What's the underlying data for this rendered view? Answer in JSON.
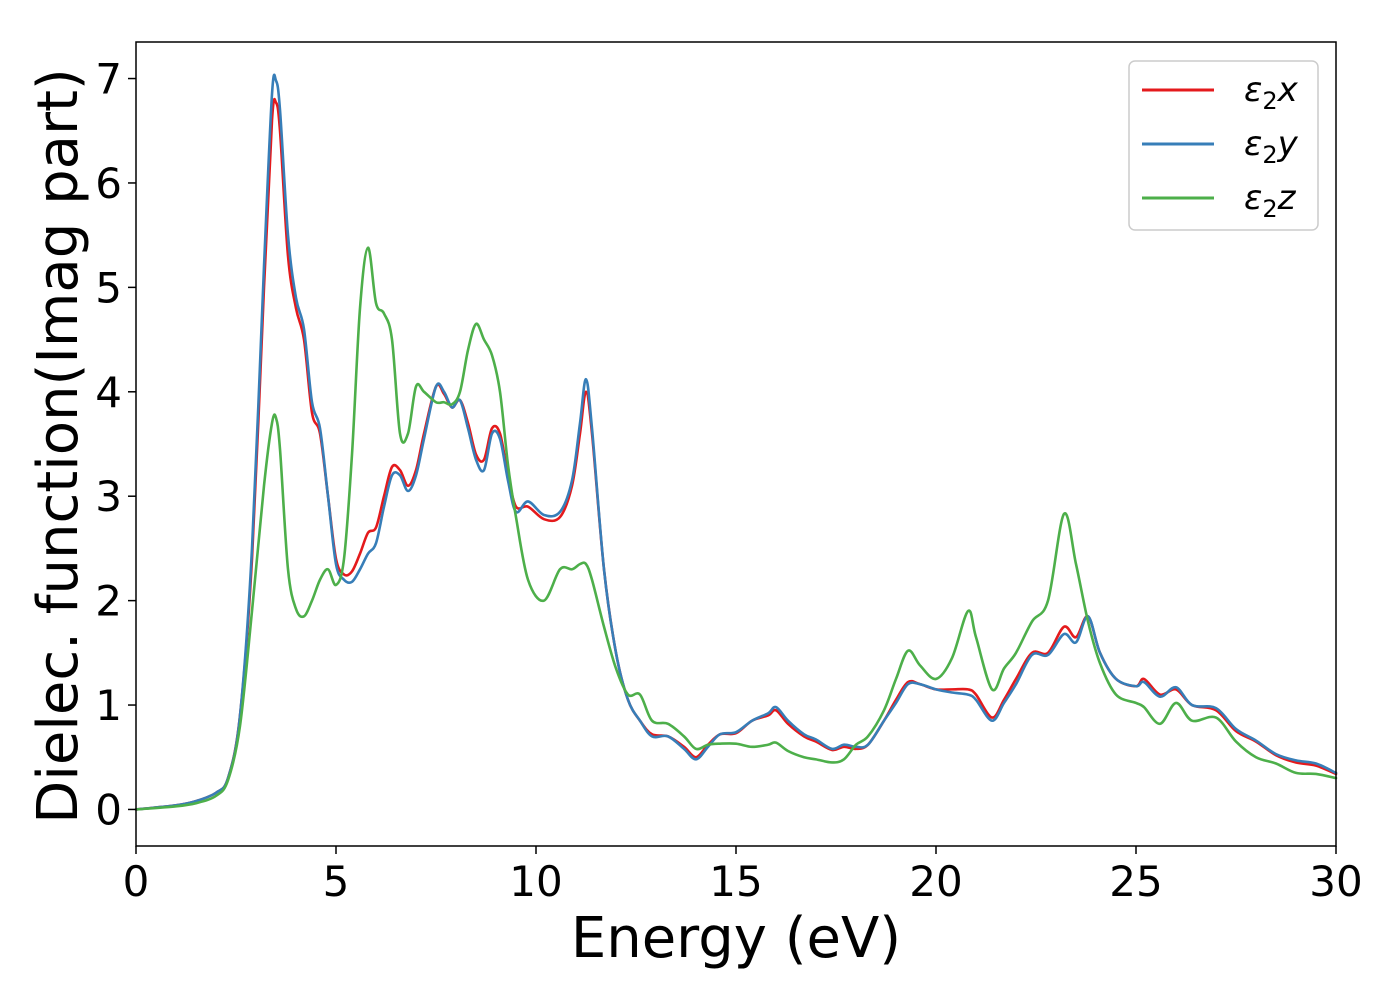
{
  "chart_data": {
    "type": "line",
    "title": "",
    "xlabel": "Energy (eV)",
    "ylabel": "Dielec. function(Imag part)",
    "xlim": [
      0,
      30
    ],
    "ylim": [
      -0.35,
      7.35
    ],
    "xticks": [
      "0",
      "5",
      "10",
      "15",
      "20",
      "25",
      "30"
    ],
    "yticks": [
      "0",
      "1",
      "2",
      "3",
      "4",
      "5",
      "6",
      "7"
    ],
    "grid": false,
    "legend_position": "top-right",
    "series": [
      {
        "name": "ε2x",
        "legend_main": "ε",
        "legend_sub": "2",
        "legend_tail": "x",
        "color": "#e41a1c",
        "points": [
          [
            0,
            0.0
          ],
          [
            1.0,
            0.04
          ],
          [
            1.5,
            0.08
          ],
          [
            2.0,
            0.16
          ],
          [
            2.3,
            0.3
          ],
          [
            2.6,
            0.9
          ],
          [
            2.9,
            2.4
          ],
          [
            3.2,
            5.0
          ],
          [
            3.4,
            6.6
          ],
          [
            3.5,
            6.77
          ],
          [
            3.6,
            6.5
          ],
          [
            3.8,
            5.3
          ],
          [
            4.0,
            4.8
          ],
          [
            4.2,
            4.5
          ],
          [
            4.4,
            3.8
          ],
          [
            4.6,
            3.6
          ],
          [
            4.8,
            3.0
          ],
          [
            5.0,
            2.4
          ],
          [
            5.2,
            2.25
          ],
          [
            5.4,
            2.28
          ],
          [
            5.6,
            2.45
          ],
          [
            5.8,
            2.65
          ],
          [
            6.0,
            2.7
          ],
          [
            6.2,
            3.0
          ],
          [
            6.4,
            3.28
          ],
          [
            6.6,
            3.25
          ],
          [
            6.8,
            3.1
          ],
          [
            7.0,
            3.25
          ],
          [
            7.2,
            3.6
          ],
          [
            7.5,
            4.05
          ],
          [
            7.7,
            3.98
          ],
          [
            7.9,
            3.85
          ],
          [
            8.1,
            3.92
          ],
          [
            8.3,
            3.7
          ],
          [
            8.5,
            3.4
          ],
          [
            8.7,
            3.35
          ],
          [
            8.9,
            3.65
          ],
          [
            9.1,
            3.6
          ],
          [
            9.3,
            3.2
          ],
          [
            9.5,
            2.9
          ],
          [
            9.8,
            2.9
          ],
          [
            10.2,
            2.78
          ],
          [
            10.6,
            2.8
          ],
          [
            10.9,
            3.1
          ],
          [
            11.1,
            3.6
          ],
          [
            11.25,
            4.0
          ],
          [
            11.4,
            3.6
          ],
          [
            11.7,
            2.3
          ],
          [
            12.0,
            1.5
          ],
          [
            12.3,
            1.05
          ],
          [
            12.6,
            0.85
          ],
          [
            12.9,
            0.72
          ],
          [
            13.3,
            0.7
          ],
          [
            13.7,
            0.6
          ],
          [
            14.0,
            0.5
          ],
          [
            14.3,
            0.62
          ],
          [
            14.6,
            0.72
          ],
          [
            15.0,
            0.73
          ],
          [
            15.4,
            0.85
          ],
          [
            15.8,
            0.9
          ],
          [
            16.0,
            0.95
          ],
          [
            16.3,
            0.82
          ],
          [
            16.7,
            0.7
          ],
          [
            17.0,
            0.65
          ],
          [
            17.4,
            0.57
          ],
          [
            17.7,
            0.6
          ],
          [
            18.0,
            0.58
          ],
          [
            18.3,
            0.62
          ],
          [
            18.7,
            0.85
          ],
          [
            19.0,
            1.05
          ],
          [
            19.3,
            1.22
          ],
          [
            19.6,
            1.2
          ],
          [
            20.0,
            1.15
          ],
          [
            20.4,
            1.15
          ],
          [
            20.8,
            1.15
          ],
          [
            21.0,
            1.1
          ],
          [
            21.4,
            0.88
          ],
          [
            21.7,
            1.05
          ],
          [
            22.0,
            1.25
          ],
          [
            22.4,
            1.5
          ],
          [
            22.8,
            1.5
          ],
          [
            23.2,
            1.75
          ],
          [
            23.5,
            1.65
          ],
          [
            23.8,
            1.85
          ],
          [
            24.1,
            1.5
          ],
          [
            24.5,
            1.25
          ],
          [
            25.0,
            1.18
          ],
          [
            25.2,
            1.25
          ],
          [
            25.6,
            1.1
          ],
          [
            26.0,
            1.15
          ],
          [
            26.4,
            1.0
          ],
          [
            27.0,
            0.95
          ],
          [
            27.5,
            0.75
          ],
          [
            28.0,
            0.65
          ],
          [
            28.5,
            0.52
          ],
          [
            29.0,
            0.45
          ],
          [
            29.5,
            0.42
          ],
          [
            30.0,
            0.34
          ]
        ]
      },
      {
        "name": "ε2y",
        "legend_main": "ε",
        "legend_sub": "2",
        "legend_tail": "y",
        "color": "#377eb8",
        "points": [
          [
            0,
            0.0
          ],
          [
            1.0,
            0.04
          ],
          [
            1.5,
            0.08
          ],
          [
            2.0,
            0.16
          ],
          [
            2.3,
            0.3
          ],
          [
            2.6,
            0.9
          ],
          [
            2.9,
            2.5
          ],
          [
            3.2,
            5.2
          ],
          [
            3.4,
            6.85
          ],
          [
            3.5,
            6.98
          ],
          [
            3.6,
            6.7
          ],
          [
            3.8,
            5.5
          ],
          [
            4.0,
            4.9
          ],
          [
            4.2,
            4.6
          ],
          [
            4.4,
            3.9
          ],
          [
            4.6,
            3.65
          ],
          [
            4.8,
            3.0
          ],
          [
            5.0,
            2.35
          ],
          [
            5.2,
            2.2
          ],
          [
            5.4,
            2.18
          ],
          [
            5.6,
            2.3
          ],
          [
            5.8,
            2.45
          ],
          [
            6.0,
            2.55
          ],
          [
            6.2,
            2.9
          ],
          [
            6.4,
            3.2
          ],
          [
            6.6,
            3.2
          ],
          [
            6.8,
            3.05
          ],
          [
            7.0,
            3.2
          ],
          [
            7.2,
            3.55
          ],
          [
            7.5,
            4.05
          ],
          [
            7.7,
            4.0
          ],
          [
            7.9,
            3.85
          ],
          [
            8.1,
            3.92
          ],
          [
            8.3,
            3.65
          ],
          [
            8.5,
            3.35
          ],
          [
            8.7,
            3.25
          ],
          [
            8.9,
            3.6
          ],
          [
            9.1,
            3.55
          ],
          [
            9.3,
            3.15
          ],
          [
            9.5,
            2.85
          ],
          [
            9.8,
            2.95
          ],
          [
            10.2,
            2.82
          ],
          [
            10.6,
            2.85
          ],
          [
            10.9,
            3.15
          ],
          [
            11.1,
            3.7
          ],
          [
            11.25,
            4.12
          ],
          [
            11.4,
            3.65
          ],
          [
            11.7,
            2.3
          ],
          [
            12.0,
            1.5
          ],
          [
            12.3,
            1.05
          ],
          [
            12.6,
            0.85
          ],
          [
            12.9,
            0.7
          ],
          [
            13.3,
            0.7
          ],
          [
            13.7,
            0.58
          ],
          [
            14.0,
            0.48
          ],
          [
            14.3,
            0.6
          ],
          [
            14.6,
            0.72
          ],
          [
            15.0,
            0.74
          ],
          [
            15.4,
            0.85
          ],
          [
            15.8,
            0.92
          ],
          [
            16.0,
            0.98
          ],
          [
            16.3,
            0.85
          ],
          [
            16.7,
            0.72
          ],
          [
            17.0,
            0.67
          ],
          [
            17.4,
            0.58
          ],
          [
            17.7,
            0.62
          ],
          [
            18.0,
            0.6
          ],
          [
            18.3,
            0.62
          ],
          [
            18.7,
            0.85
          ],
          [
            19.0,
            1.02
          ],
          [
            19.3,
            1.2
          ],
          [
            19.6,
            1.2
          ],
          [
            20.0,
            1.15
          ],
          [
            20.4,
            1.12
          ],
          [
            20.8,
            1.1
          ],
          [
            21.0,
            1.05
          ],
          [
            21.4,
            0.85
          ],
          [
            21.7,
            1.02
          ],
          [
            22.0,
            1.2
          ],
          [
            22.4,
            1.48
          ],
          [
            22.8,
            1.48
          ],
          [
            23.2,
            1.68
          ],
          [
            23.5,
            1.6
          ],
          [
            23.8,
            1.85
          ],
          [
            24.1,
            1.5
          ],
          [
            24.5,
            1.25
          ],
          [
            25.0,
            1.18
          ],
          [
            25.2,
            1.22
          ],
          [
            25.6,
            1.08
          ],
          [
            26.0,
            1.17
          ],
          [
            26.4,
            1.0
          ],
          [
            27.0,
            0.97
          ],
          [
            27.5,
            0.77
          ],
          [
            28.0,
            0.66
          ],
          [
            28.5,
            0.53
          ],
          [
            29.0,
            0.47
          ],
          [
            29.5,
            0.44
          ],
          [
            30.0,
            0.35
          ]
        ]
      },
      {
        "name": "ε2z",
        "legend_main": "ε",
        "legend_sub": "2",
        "legend_tail": "z",
        "color": "#4daf4a",
        "points": [
          [
            0,
            0.0
          ],
          [
            1.0,
            0.03
          ],
          [
            1.5,
            0.06
          ],
          [
            2.0,
            0.13
          ],
          [
            2.3,
            0.28
          ],
          [
            2.6,
            0.8
          ],
          [
            2.9,
            1.9
          ],
          [
            3.2,
            3.1
          ],
          [
            3.4,
            3.7
          ],
          [
            3.5,
            3.75
          ],
          [
            3.6,
            3.45
          ],
          [
            3.8,
            2.3
          ],
          [
            4.0,
            1.92
          ],
          [
            4.2,
            1.85
          ],
          [
            4.4,
            2.0
          ],
          [
            4.6,
            2.2
          ],
          [
            4.8,
            2.3
          ],
          [
            5.0,
            2.15
          ],
          [
            5.2,
            2.4
          ],
          [
            5.4,
            3.4
          ],
          [
            5.6,
            4.8
          ],
          [
            5.8,
            5.38
          ],
          [
            6.0,
            4.85
          ],
          [
            6.2,
            4.75
          ],
          [
            6.4,
            4.5
          ],
          [
            6.6,
            3.6
          ],
          [
            6.8,
            3.6
          ],
          [
            7.0,
            4.05
          ],
          [
            7.2,
            4.0
          ],
          [
            7.5,
            3.9
          ],
          [
            7.7,
            3.9
          ],
          [
            7.9,
            3.88
          ],
          [
            8.1,
            4.0
          ],
          [
            8.3,
            4.4
          ],
          [
            8.5,
            4.65
          ],
          [
            8.7,
            4.5
          ],
          [
            8.9,
            4.35
          ],
          [
            9.1,
            4.0
          ],
          [
            9.3,
            3.3
          ],
          [
            9.5,
            2.8
          ],
          [
            9.8,
            2.2
          ],
          [
            10.2,
            2.0
          ],
          [
            10.6,
            2.3
          ],
          [
            10.9,
            2.3
          ],
          [
            11.1,
            2.35
          ],
          [
            11.25,
            2.35
          ],
          [
            11.4,
            2.2
          ],
          [
            11.7,
            1.75
          ],
          [
            12.0,
            1.35
          ],
          [
            12.3,
            1.1
          ],
          [
            12.6,
            1.1
          ],
          [
            12.9,
            0.85
          ],
          [
            13.3,
            0.82
          ],
          [
            13.7,
            0.7
          ],
          [
            14.0,
            0.58
          ],
          [
            14.3,
            0.62
          ],
          [
            14.6,
            0.63
          ],
          [
            15.0,
            0.63
          ],
          [
            15.4,
            0.6
          ],
          [
            15.8,
            0.62
          ],
          [
            16.0,
            0.64
          ],
          [
            16.3,
            0.56
          ],
          [
            16.7,
            0.5
          ],
          [
            17.0,
            0.48
          ],
          [
            17.4,
            0.45
          ],
          [
            17.7,
            0.48
          ],
          [
            18.0,
            0.62
          ],
          [
            18.3,
            0.7
          ],
          [
            18.7,
            0.95
          ],
          [
            19.0,
            1.25
          ],
          [
            19.3,
            1.52
          ],
          [
            19.6,
            1.38
          ],
          [
            20.0,
            1.25
          ],
          [
            20.4,
            1.45
          ],
          [
            20.8,
            1.9
          ],
          [
            21.0,
            1.65
          ],
          [
            21.4,
            1.15
          ],
          [
            21.7,
            1.35
          ],
          [
            22.0,
            1.5
          ],
          [
            22.4,
            1.8
          ],
          [
            22.8,
            2.0
          ],
          [
            23.2,
            2.83
          ],
          [
            23.5,
            2.35
          ],
          [
            23.8,
            1.8
          ],
          [
            24.1,
            1.4
          ],
          [
            24.5,
            1.1
          ],
          [
            25.0,
            1.02
          ],
          [
            25.2,
            0.98
          ],
          [
            25.6,
            0.82
          ],
          [
            26.0,
            1.02
          ],
          [
            26.4,
            0.85
          ],
          [
            27.0,
            0.88
          ],
          [
            27.5,
            0.65
          ],
          [
            28.0,
            0.5
          ],
          [
            28.5,
            0.44
          ],
          [
            29.0,
            0.35
          ],
          [
            29.5,
            0.34
          ],
          [
            30.0,
            0.3
          ]
        ]
      }
    ]
  }
}
